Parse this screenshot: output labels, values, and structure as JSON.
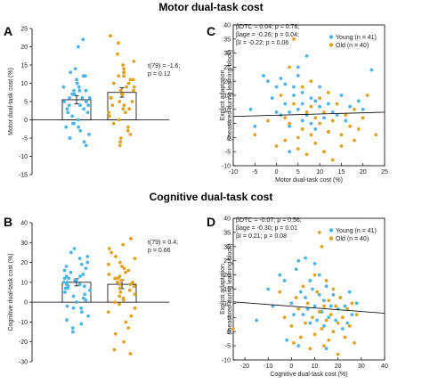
{
  "titles": {
    "motor": "Motor dual-task cost",
    "cognitive": "Cognitive dual-task cost"
  },
  "panel_labels": {
    "A": "A",
    "B": "B",
    "C": "C",
    "D": "D"
  },
  "colors": {
    "young": "#4DB3E6",
    "old": "#E0A21C",
    "bar_fill": "#ffffff",
    "axis": "#000000",
    "fit_line": "#111111"
  },
  "chart_data": [
    {
      "id": "A",
      "type": "bar",
      "title": "Motor dual-task cost",
      "ylabel": "Motor dual-task cost (%)",
      "ylim": [
        -15,
        25
      ],
      "yticks": [
        -15,
        -10,
        -5,
        0,
        5,
        10,
        15,
        20,
        25
      ],
      "stat_lines": [
        "t(79) = -1.6;",
        "p = 0.12"
      ],
      "series": [
        {
          "name": "Young",
          "mean": 5.5,
          "sem": 1.1,
          "values": [
            22,
            20,
            14,
            13,
            12,
            12,
            11,
            10,
            10,
            9,
            9,
            8,
            8,
            8,
            7,
            7,
            6,
            6,
            6,
            5,
            5,
            5,
            4,
            4,
            4,
            3,
            3,
            2,
            2,
            1,
            0,
            -1,
            -1,
            -2,
            -2,
            -3,
            -4,
            -5,
            -5,
            -6,
            -7
          ]
        },
        {
          "name": "Old",
          "mean": 7.5,
          "sem": 1.3,
          "values": [
            23,
            21,
            18,
            16,
            15,
            14,
            13,
            13,
            12,
            12,
            11,
            11,
            10,
            10,
            9,
            9,
            8,
            8,
            7,
            7,
            7,
            6,
            6,
            5,
            5,
            4,
            4,
            3,
            3,
            2,
            2,
            1,
            0,
            -1,
            -2,
            -3,
            -4,
            -5,
            -6,
            -7
          ]
        }
      ]
    },
    {
      "id": "B",
      "type": "bar",
      "title": "Cognitive dual-task cost",
      "ylabel": "Cognitive dual-task cost (%)",
      "ylim": [
        -30,
        40
      ],
      "yticks": [
        -30,
        -20,
        -10,
        0,
        10,
        20,
        30,
        40
      ],
      "stat_lines": [
        "t(79) = 0.4;",
        "p = 0.66"
      ],
      "series": [
        {
          "name": "Young",
          "mean": 10,
          "sem": 1.8,
          "values": [
            27,
            25,
            23,
            22,
            20,
            19,
            18,
            17,
            16,
            15,
            14,
            13,
            13,
            12,
            12,
            11,
            11,
            10,
            10,
            9,
            9,
            8,
            8,
            7,
            7,
            6,
            5,
            4,
            3,
            2,
            1,
            0,
            -2,
            -3,
            -5,
            -7,
            -9,
            -11,
            -13,
            -15,
            -3
          ]
        },
        {
          "name": "Old",
          "mean": 9,
          "sem": 2.2,
          "values": [
            32,
            29,
            27,
            25,
            23,
            22,
            20,
            19,
            18,
            17,
            16,
            15,
            14,
            13,
            12,
            12,
            11,
            10,
            10,
            9,
            9,
            8,
            7,
            6,
            5,
            4,
            3,
            2,
            1,
            0,
            -1,
            -3,
            -5,
            -7,
            -10,
            -13,
            -16,
            -20,
            -24,
            -26
          ]
        }
      ]
    },
    {
      "id": "C",
      "type": "scatter",
      "xlabel": "Motor dual-task cost (%)",
      "ylabel_lines": [
        "Explicit adaptation",
        "(measured during learning block)"
      ],
      "xlim": [
        -10,
        25
      ],
      "ylim": [
        -10,
        40
      ],
      "xticks": [
        -10,
        -5,
        0,
        5,
        10,
        15,
        20,
        25
      ],
      "yticks": [
        -10,
        -5,
        0,
        5,
        10,
        15,
        20,
        25,
        30,
        35,
        40
      ],
      "stat_lines": [
        "βDTC = 0.04; p = 0.76;",
        "βage = -0.26; p = 0.04;",
        "βI = -0.22; p = 0.06"
      ],
      "legend": [
        "Young (n = 41)",
        "Old (n = 40)"
      ],
      "legend_position": "top-right",
      "fit_line": {
        "x": [
          -10,
          25
        ],
        "y": [
          7.5,
          9.0
        ]
      },
      "series": [
        {
          "name": "Young",
          "points": [
            [
              -5,
              4
            ],
            [
              -3,
              22
            ],
            [
              -2,
              20
            ],
            [
              -1,
              14
            ],
            [
              0,
              18
            ],
            [
              0,
              9
            ],
            [
              1,
              8
            ],
            [
              1,
              21
            ],
            [
              2,
              19
            ],
            [
              2,
              12
            ],
            [
              3,
              9
            ],
            [
              3,
              4
            ],
            [
              4,
              15
            ],
            [
              4,
              18
            ],
            [
              5,
              10
            ],
            [
              5,
              22
            ],
            [
              5,
              25
            ],
            [
              6,
              16
            ],
            [
              6,
              12
            ],
            [
              6,
              6
            ],
            [
              7,
              8
            ],
            [
              7,
              29
            ],
            [
              8,
              14
            ],
            [
              8,
              5
            ],
            [
              9,
              13
            ],
            [
              9,
              3
            ],
            [
              10,
              11
            ],
            [
              10,
              18
            ],
            [
              11,
              7
            ],
            [
              12,
              12
            ],
            [
              12,
              2
            ],
            [
              13,
              9
            ],
            [
              14,
              8
            ],
            [
              15,
              15
            ],
            [
              16,
              6
            ],
            [
              17,
              11
            ],
            [
              19,
              13
            ],
            [
              20,
              10
            ],
            [
              22,
              24
            ],
            [
              -6,
              10
            ],
            [
              3,
              -5
            ]
          ]
        },
        {
          "name": "Old",
          "points": [
            [
              -5,
              1
            ],
            [
              -2,
              6
            ],
            [
              0,
              -3
            ],
            [
              1,
              15
            ],
            [
              2,
              7
            ],
            [
              2,
              -1
            ],
            [
              3,
              25
            ],
            [
              3,
              5
            ],
            [
              4,
              35
            ],
            [
              4,
              12
            ],
            [
              5,
              0
            ],
            [
              5,
              -4
            ],
            [
              6,
              18
            ],
            [
              6,
              3
            ],
            [
              7,
              9
            ],
            [
              7,
              -6
            ],
            [
              8,
              20
            ],
            [
              8,
              11
            ],
            [
              8,
              1
            ],
            [
              9,
              7
            ],
            [
              9,
              -2
            ],
            [
              10,
              14
            ],
            [
              10,
              5
            ],
            [
              11,
              9
            ],
            [
              11,
              -5
            ],
            [
              12,
              16
            ],
            [
              12,
              2
            ],
            [
              13,
              6
            ],
            [
              13,
              -8
            ],
            [
              14,
              12
            ],
            [
              15,
              1
            ],
            [
              15,
              -3
            ],
            [
              16,
              8
            ],
            [
              17,
              4
            ],
            [
              18,
              10
            ],
            [
              18,
              -1
            ],
            [
              19,
              3
            ],
            [
              20,
              7
            ],
            [
              21,
              15
            ],
            [
              23,
              1
            ]
          ]
        }
      ]
    },
    {
      "id": "D",
      "type": "scatter",
      "xlabel": "Cognitive dual-task cost (%)",
      "ylabel_lines": [
        "Explicit adaptation",
        "(measured during learning block)"
      ],
      "xlim": [
        -25,
        40
      ],
      "ylim": [
        -10,
        40
      ],
      "xticks": [
        -20,
        -10,
        0,
        10,
        20,
        30,
        40
      ],
      "yticks": [
        -10,
        -5,
        0,
        5,
        10,
        15,
        20,
        25,
        30,
        35,
        40
      ],
      "stat_lines": [
        "βDTC = -0.07; p = 0.56;",
        "βage = -0.30; p = 0.01",
        "βI = 0.21; p = 0.08"
      ],
      "legend": [
        "Young (n = 41)",
        "Old (n = 40)"
      ],
      "legend_position": "top-right",
      "fit_line": {
        "x": [
          -25,
          40
        ],
        "y": [
          10.5,
          6.5
        ]
      },
      "series": [
        {
          "name": "Young",
          "points": [
            [
              -15,
              4
            ],
            [
              -10,
              15
            ],
            [
              -8,
              9
            ],
            [
              -5,
              20
            ],
            [
              -3,
              18
            ],
            [
              0,
              10
            ],
            [
              2,
              22
            ],
            [
              3,
              25
            ],
            [
              4,
              14
            ],
            [
              5,
              6
            ],
            [
              6,
              12
            ],
            [
              6,
              26
            ],
            [
              7,
              8
            ],
            [
              8,
              18
            ],
            [
              8,
              3
            ],
            [
              9,
              15
            ],
            [
              10,
              9
            ],
            [
              10,
              24
            ],
            [
              11,
              4
            ],
            [
              12,
              13
            ],
            [
              12,
              20
            ],
            [
              13,
              7
            ],
            [
              14,
              11
            ],
            [
              14,
              2
            ],
            [
              15,
              16
            ],
            [
              16,
              5
            ],
            [
              17,
              9
            ],
            [
              18,
              13
            ],
            [
              19,
              4
            ],
            [
              20,
              8
            ],
            [
              21,
              12
            ],
            [
              22,
              1
            ],
            [
              23,
              9
            ],
            [
              25,
              14
            ],
            [
              26,
              6
            ],
            [
              28,
              10
            ],
            [
              -2,
              -3
            ],
            [
              3,
              -5
            ],
            [
              1,
              6
            ],
            [
              24,
              3
            ],
            [
              15,
              -6
            ]
          ]
        },
        {
          "name": "Old",
          "points": [
            [
              -25,
              1
            ],
            [
              -5,
              14
            ],
            [
              -3,
              5
            ],
            [
              0,
              2
            ],
            [
              1,
              -4
            ],
            [
              2,
              12
            ],
            [
              3,
              8
            ],
            [
              4,
              -2
            ],
            [
              5,
              16
            ],
            [
              6,
              3
            ],
            [
              7,
              10
            ],
            [
              8,
              -6
            ],
            [
              9,
              5
            ],
            [
              10,
              20
            ],
            [
              10,
              -1
            ],
            [
              11,
              14
            ],
            [
              12,
              7
            ],
            [
              12,
              35
            ],
            [
              13,
              1
            ],
            [
              13,
              30
            ],
            [
              14,
              9
            ],
            [
              14,
              -5
            ],
            [
              15,
              18
            ],
            [
              15,
              4
            ],
            [
              16,
              11
            ],
            [
              16,
              -3
            ],
            [
              17,
              6
            ],
            [
              18,
              15
            ],
            [
              18,
              0
            ],
            [
              19,
              9
            ],
            [
              20,
              3
            ],
            [
              20,
              -8
            ],
            [
              21,
              12
            ],
            [
              22,
              5
            ],
            [
              23,
              -2
            ],
            [
              24,
              8
            ],
            [
              25,
              2
            ],
            [
              26,
              10
            ],
            [
              27,
              -4
            ],
            [
              28,
              6
            ]
          ]
        }
      ]
    }
  ]
}
